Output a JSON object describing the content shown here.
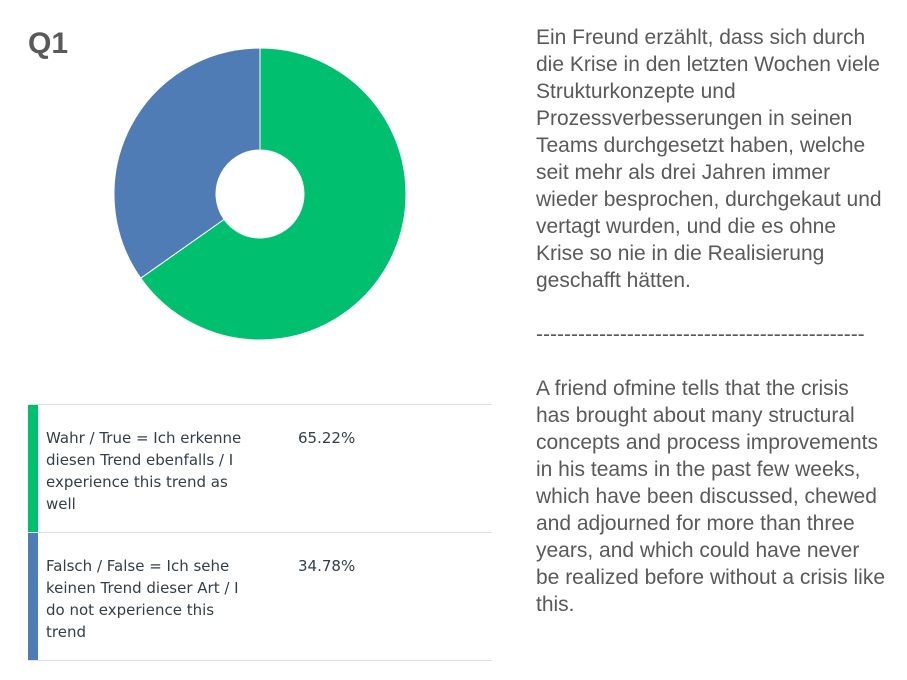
{
  "title": "Q1",
  "chart_data": {
    "type": "pie",
    "donut": true,
    "categories": [
      "Wahr / True = Ich erkenne diesen Trend ebenfalls / I experience this trend as well",
      "Falsch / False = Ich sehe keinen Trend dieser Art / I do not experience this trend"
    ],
    "values": [
      65.22,
      34.78
    ],
    "value_labels": [
      "65.22%",
      "34.78%"
    ],
    "colors": [
      "#00bf6f",
      "#507cb6"
    ],
    "legend": "bottom"
  },
  "text": {
    "german": "Ein Freund erzählt, dass sich durch die Krise in den letzten Wochen viele Strukturkonzepte und Prozessverbesserungen in seinen Teams durchgesetzt haben, welche seit mehr als drei Jahren immer wieder besprochen, durchgekaut und vertagt wurden, und die es ohne Krise so nie in die Realisierung geschafft hätten.",
    "divider": "-----------------------------------------------",
    "english": "A friend ofmine tells that the crisis has brought about many structural concepts and process improvements in his teams in the past few weeks, which have been discussed, chewed and adjourned for more than three years, and which could have never be realized before without a crisis like this."
  }
}
